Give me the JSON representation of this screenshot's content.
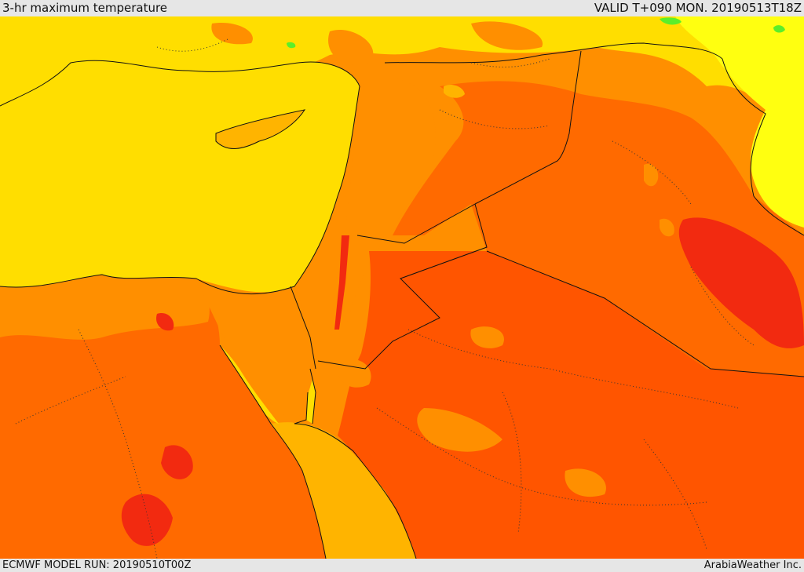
{
  "header": {
    "title": "3-hr maximum temperature",
    "valid": "VALID T+090 MON. 20190513T18Z"
  },
  "footer": {
    "model_run": "ECMWF MODEL RUN: 20190510T00Z",
    "credit": "ArabiaWeather Inc."
  },
  "colors": {
    "sea_yellow": "#ffde00",
    "bright_yellow": "#ffff10",
    "yellow_orange": "#ffb400",
    "orange": "#ff8f00",
    "dark_orange": "#ff6a00",
    "red_orange": "#ff5500",
    "red": "#f22a10",
    "green": "#5cee2a"
  }
}
